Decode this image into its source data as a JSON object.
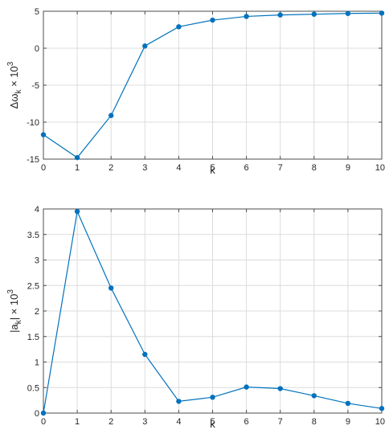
{
  "chart_data": [
    {
      "type": "line",
      "title": "",
      "xlabel": "k",
      "ylabel_parts": {
        "delta": "Δω",
        "sub": "k",
        "times": " × 10",
        "sup": "3"
      },
      "xlim": [
        0,
        10
      ],
      "ylim": [
        -15,
        5
      ],
      "x": [
        0,
        1,
        2,
        3,
        4,
        5,
        6,
        7,
        8,
        9,
        10
      ],
      "series": [
        {
          "values": [
            -11.7,
            -14.8,
            -9.1,
            0.3,
            2.9,
            3.8,
            4.3,
            4.5,
            4.6,
            4.7,
            4.75
          ]
        }
      ],
      "xticks": [
        "0",
        "1",
        "2",
        "3",
        "4",
        "5",
        "6",
        "7",
        "8",
        "9",
        "10"
      ],
      "yticks": [
        -15,
        -10,
        -5,
        0,
        5
      ],
      "ytick_labels": [
        "-15",
        "-10",
        "-5",
        "0",
        "5"
      ],
      "grid": true,
      "color": "#0072bd"
    },
    {
      "type": "line",
      "title": "",
      "xlabel": "k",
      "ylabel_parts": {
        "pre": "|a",
        "sub": "k",
        "post": "| × 10",
        "sup": "3"
      },
      "xlim": [
        0,
        10
      ],
      "ylim": [
        0,
        4
      ],
      "x": [
        0,
        1,
        2,
        3,
        4,
        5,
        6,
        7,
        8,
        9,
        10
      ],
      "series": [
        {
          "values": [
            0.0,
            3.95,
            2.45,
            1.15,
            0.23,
            0.31,
            0.51,
            0.48,
            0.34,
            0.19,
            0.09
          ]
        }
      ],
      "xticks": [
        "0",
        "1",
        "2",
        "3",
        "4",
        "5",
        "6",
        "7",
        "8",
        "9",
        "10"
      ],
      "yticks": [
        0,
        0.5,
        1,
        1.5,
        2,
        2.5,
        3,
        3.5,
        4
      ],
      "ytick_labels": [
        "0",
        "0.5",
        "1",
        "1.5",
        "2",
        "2.5",
        "3",
        "3.5",
        "4"
      ],
      "grid": true,
      "color": "#0072bd"
    }
  ]
}
